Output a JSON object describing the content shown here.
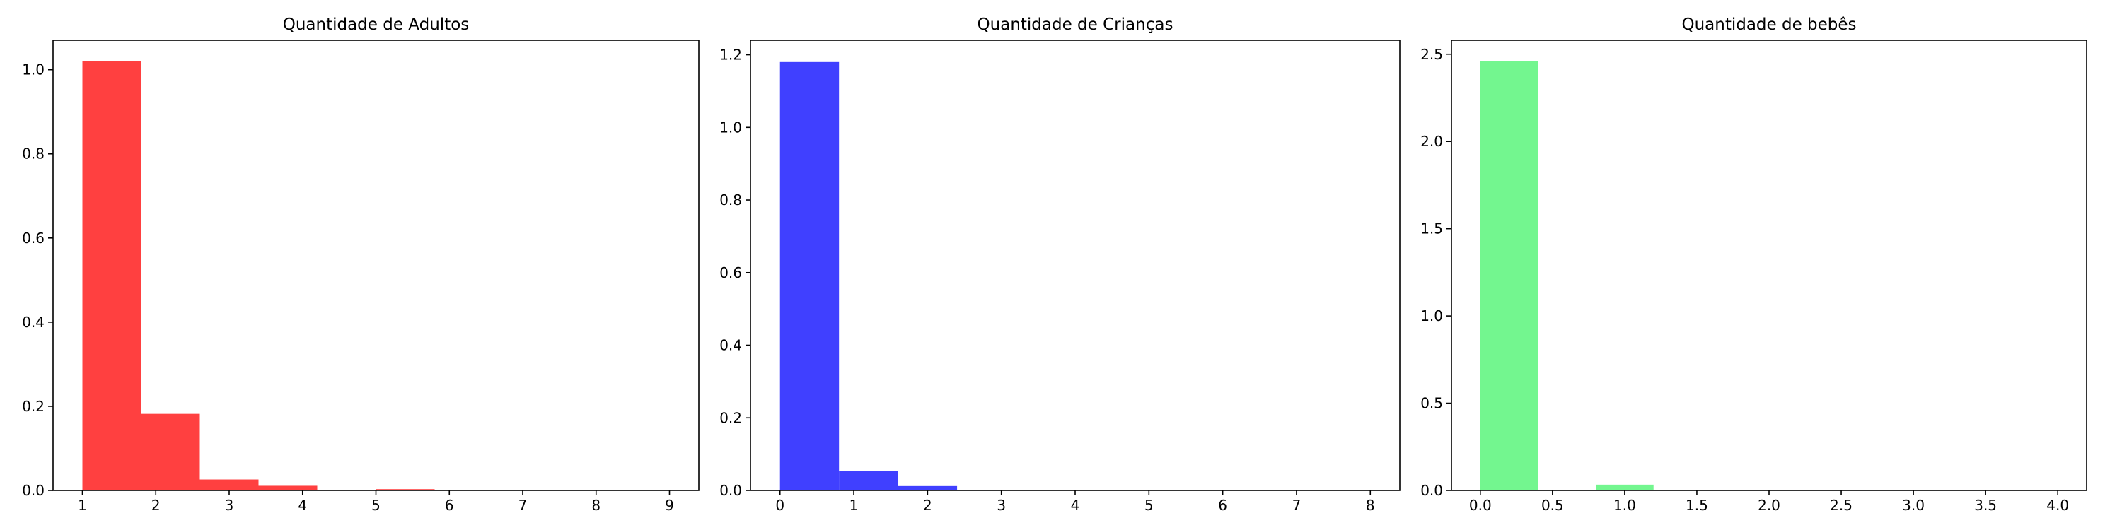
{
  "chart_data": [
    {
      "type": "bar",
      "title": "Quantidade de Adultos",
      "color": "#ff0000",
      "bar_opacity": 0.75,
      "xlim": [
        0.6,
        9.4
      ],
      "ylim": [
        0,
        1.07
      ],
      "xticks": [
        1,
        2,
        3,
        4,
        5,
        6,
        7,
        8,
        9
      ],
      "yticks": [
        0.0,
        0.2,
        0.4,
        0.6,
        0.8,
        1.0
      ],
      "xtick_labels": [
        "1",
        "2",
        "3",
        "4",
        "5",
        "6",
        "7",
        "8",
        "9"
      ],
      "ytick_labels": [
        "0.0",
        "0.2",
        "0.4",
        "0.6",
        "0.8",
        "1.0"
      ],
      "bins": [
        {
          "x0": 1.0,
          "x1": 1.8,
          "value": 1.02
        },
        {
          "x0": 1.8,
          "x1": 2.6,
          "value": 0.182
        },
        {
          "x0": 2.6,
          "x1": 3.4,
          "value": 0.026
        },
        {
          "x0": 3.4,
          "x1": 4.2,
          "value": 0.011
        },
        {
          "x0": 4.2,
          "x1": 5.0,
          "value": 0.0
        },
        {
          "x0": 5.0,
          "x1": 5.8,
          "value": 0.003
        },
        {
          "x0": 5.8,
          "x1": 6.6,
          "value": 0.0005
        },
        {
          "x0": 6.6,
          "x1": 7.4,
          "value": 0.0
        },
        {
          "x0": 7.4,
          "x1": 8.2,
          "value": 0.0
        },
        {
          "x0": 8.2,
          "x1": 9.0,
          "value": 0.0002
        }
      ]
    },
    {
      "type": "bar",
      "title": "Quantidade de Crianças",
      "color": "#0000ff",
      "bar_opacity": 0.75,
      "xlim": [
        -0.4,
        8.4
      ],
      "ylim": [
        0,
        1.24
      ],
      "xticks": [
        0,
        1,
        2,
        3,
        4,
        5,
        6,
        7,
        8
      ],
      "yticks": [
        0.0,
        0.2,
        0.4,
        0.6,
        0.8,
        1.0,
        1.2
      ],
      "xtick_labels": [
        "0",
        "1",
        "2",
        "3",
        "4",
        "5",
        "6",
        "7",
        "8"
      ],
      "ytick_labels": [
        "0.0",
        "0.2",
        "0.4",
        "0.6",
        "0.8",
        "1.0",
        "1.2"
      ],
      "bins": [
        {
          "x0": 0.0,
          "x1": 0.8,
          "value": 1.18
        },
        {
          "x0": 0.8,
          "x1": 1.6,
          "value": 0.053
        },
        {
          "x0": 1.6,
          "x1": 2.4,
          "value": 0.012
        },
        {
          "x0": 2.4,
          "x1": 3.2,
          "value": 0.0
        },
        {
          "x0": 3.2,
          "x1": 4.0,
          "value": 0.0
        },
        {
          "x0": 4.0,
          "x1": 4.8,
          "value": 0.0
        },
        {
          "x0": 4.8,
          "x1": 5.6,
          "value": 0.0
        },
        {
          "x0": 5.6,
          "x1": 6.4,
          "value": 0.0
        },
        {
          "x0": 6.4,
          "x1": 7.2,
          "value": 0.0
        },
        {
          "x0": 7.2,
          "x1": 8.0,
          "value": 0.0
        }
      ]
    },
    {
      "type": "bar",
      "title": "Quantidade de bebês",
      "color": "#00ee33",
      "bar_opacity": 0.55,
      "xlim": [
        -0.2,
        4.2
      ],
      "ylim": [
        0,
        2.58
      ],
      "xticks": [
        0.0,
        0.5,
        1.0,
        1.5,
        2.0,
        2.5,
        3.0,
        3.5,
        4.0
      ],
      "yticks": [
        0.0,
        0.5,
        1.0,
        1.5,
        2.0,
        2.5
      ],
      "xtick_labels": [
        "0.0",
        "0.5",
        "1.0",
        "1.5",
        "2.0",
        "2.5",
        "3.0",
        "3.5",
        "4.0"
      ],
      "ytick_labels": [
        "0.0",
        "0.5",
        "1.0",
        "1.5",
        "2.0",
        "2.5"
      ],
      "bins": [
        {
          "x0": 0.0,
          "x1": 0.4,
          "value": 2.46
        },
        {
          "x0": 0.4,
          "x1": 0.8,
          "value": 0.0
        },
        {
          "x0": 0.8,
          "x1": 1.2,
          "value": 0.033
        },
        {
          "x0": 1.2,
          "x1": 1.6,
          "value": 0.0
        },
        {
          "x0": 1.6,
          "x1": 2.0,
          "value": 0.0
        },
        {
          "x0": 2.0,
          "x1": 2.4,
          "value": 0.0
        },
        {
          "x0": 2.4,
          "x1": 2.8,
          "value": 0.0
        },
        {
          "x0": 2.8,
          "x1": 3.2,
          "value": 0.0
        },
        {
          "x0": 3.2,
          "x1": 3.6,
          "value": 0.0
        },
        {
          "x0": 3.6,
          "x1": 4.0,
          "value": 0.0
        }
      ]
    }
  ]
}
